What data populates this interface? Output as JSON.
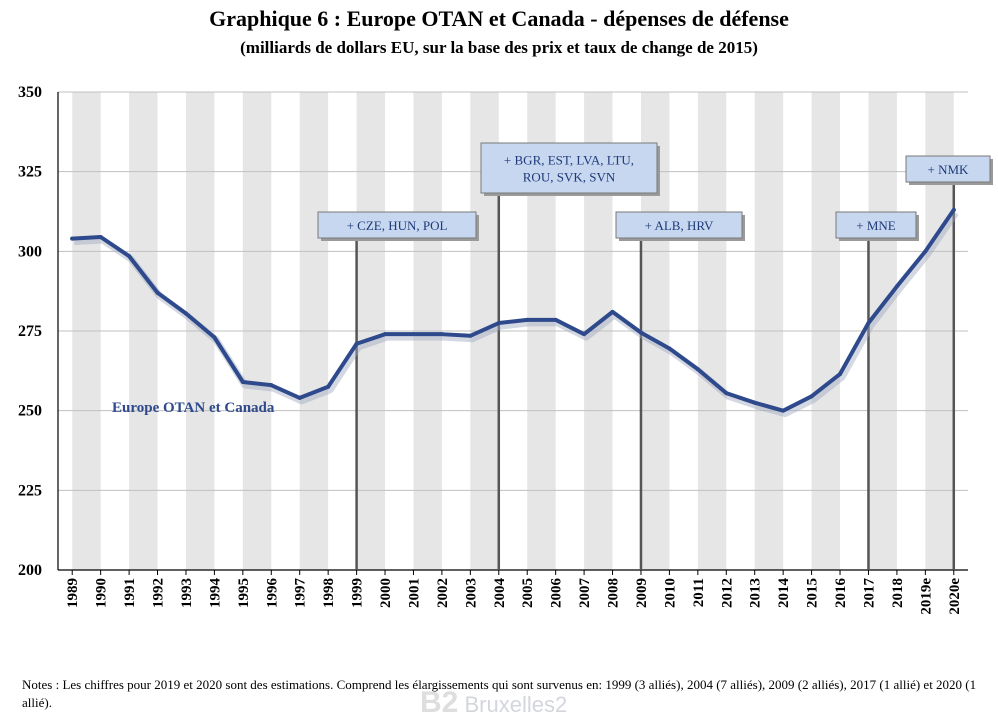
{
  "title": "Graphique 6 : Europe OTAN et Canada - dépenses de défense",
  "subtitle": "(milliards de dollars EU, sur la base des prix et taux de change de 2015)",
  "notes": "Notes : Les chiffres pour 2019 et 2020 sont des estimations. Comprend les élargissements qui sont survenus en: 1999 (3 alliés), 2004 (7 alliés), 2009 (2 alliés), 2017 (1 allié) et 2020 (1 allié).",
  "watermark": {
    "logo": "B2",
    "text": "Bruxelles2"
  },
  "colors": {
    "line": "#2e4a8c",
    "stripe": "#e6e6e6",
    "annotation_fill": "#c7d7ef",
    "grid": "#c0c0c0"
  },
  "chart_data": {
    "type": "line",
    "title": "Graphique 6 : Europe OTAN et Canada - dépenses de défense",
    "subtitle": "(milliards de dollars EU, sur la base des prix et taux de change de 2015)",
    "xlabel": "",
    "ylabel": "",
    "ylim": [
      200,
      350
    ],
    "yticks": [
      "200",
      "225",
      "250",
      "275",
      "300",
      "325",
      "350"
    ],
    "categories": [
      "1989",
      "1990",
      "1991",
      "1992",
      "1993",
      "1994",
      "1995",
      "1996",
      "1997",
      "1998",
      "1999",
      "2000",
      "2001",
      "2002",
      "2003",
      "2004",
      "2005",
      "2006",
      "2007",
      "2008",
      "2009",
      "2010",
      "2011",
      "2012",
      "2013",
      "2014",
      "2015",
      "2016",
      "2017",
      "2018",
      "2019e",
      "2020e"
    ],
    "series": [
      {
        "name": "Europe OTAN et Canada",
        "values": [
          304,
          304.5,
          298.5,
          287,
          280.5,
          273,
          259,
          258,
          254,
          257.5,
          271,
          274,
          274,
          274,
          273.5,
          277.5,
          278.5,
          278.5,
          274,
          281,
          274.5,
          269.5,
          263,
          255.5,
          252.5,
          250,
          254.5,
          261.5,
          277.5,
          289,
          300,
          313
        ]
      }
    ],
    "grid": "horizontal",
    "annotations": [
      {
        "year": "1999",
        "text_lines": [
          "+ CZE, HUN, POL"
        ]
      },
      {
        "year": "2004",
        "text_lines": [
          "+ BGR, EST, LVA, LTU,",
          "ROU, SVK, SVN"
        ]
      },
      {
        "year": "2009",
        "text_lines": [
          "+ ALB, HRV"
        ]
      },
      {
        "year": "2017",
        "text_lines": [
          "+ MNE"
        ]
      },
      {
        "year": "2020e",
        "text_lines": [
          "+ NMK"
        ]
      }
    ]
  }
}
